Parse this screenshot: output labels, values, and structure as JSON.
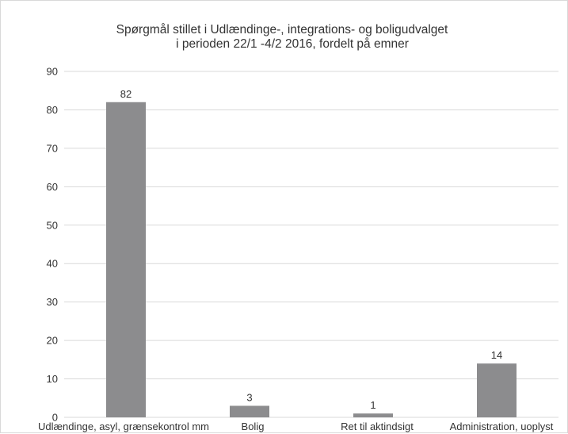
{
  "chart_data": {
    "type": "bar",
    "title_lines": [
      "Spørgmål stillet i Udlændinge-, integrations- og boligudvalget",
      "i perioden 22/1 -4/2 2016, fordelt på emner"
    ],
    "categories": [
      "Udlændinge, asyl, grænsekontrol mm",
      "Bolig",
      "Ret til aktindsigt",
      "Administration, uoplyst"
    ],
    "values": [
      82,
      3,
      1,
      14
    ],
    "data_labels": [
      "82",
      "3",
      "1",
      "14"
    ],
    "ylim": [
      0,
      90
    ],
    "yticks": [
      0,
      10,
      20,
      30,
      40,
      50,
      60,
      70,
      80,
      90
    ],
    "grid": true,
    "legend": "none",
    "colors": {
      "bar": "#8c8c8e",
      "grid": "#d9d9d9",
      "text": "#333333"
    }
  }
}
